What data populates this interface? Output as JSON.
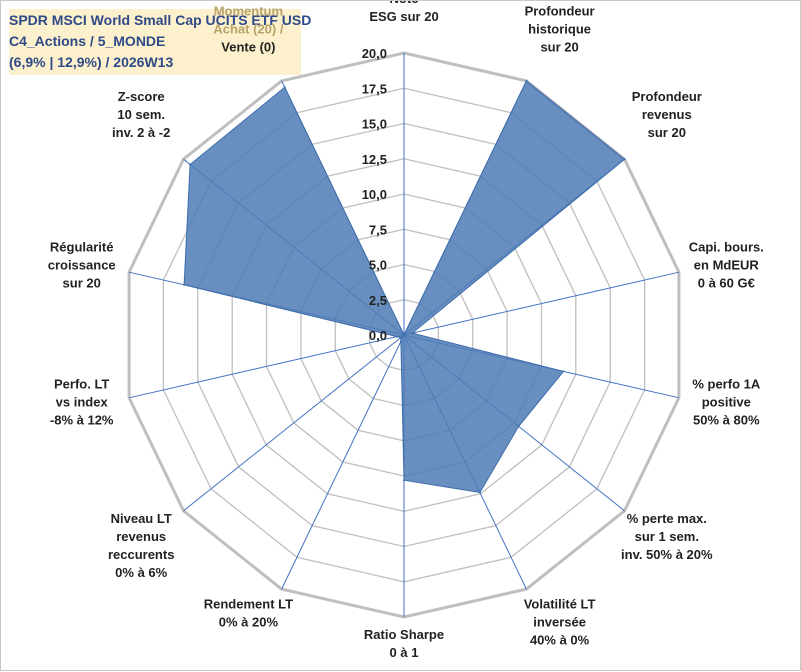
{
  "title": {
    "line1": "SPDR MSCI World Small Cap UCITS ETF USD",
    "line2": "C4_Actions / 5_MONDE",
    "line3": "(6,9% | 12,9%) / 2026W13"
  },
  "colors": {
    "fill": "#4f7bb5",
    "stroke": "#3d6dac",
    "grid": "#bfbfbf",
    "spoke": "#4472c4",
    "title_bg": "#fdf0cc",
    "title_text": "#2e4a88",
    "muted_label": "#b8a36a"
  },
  "chart_data": {
    "type": "radar",
    "rmax": 20,
    "tick_step": 2.5,
    "ticks": [
      "0,0",
      "2,5",
      "5,0",
      "7,5",
      "10,0",
      "12,5",
      "15,0",
      "17,5",
      "20,0"
    ],
    "axes": [
      {
        "label": [
          "Note",
          "ESG sur 20"
        ],
        "value": 0
      },
      {
        "label": [
          "Profondeur",
          "historique",
          "sur 20"
        ],
        "value": 20
      },
      {
        "label": [
          "Profondeur",
          "revenus",
          "sur 20"
        ],
        "value": 20
      },
      {
        "label": [
          "Capi. bours.",
          "en MdEUR",
          "0 à 60 G€"
        ],
        "value": 0.6
      },
      {
        "label": [
          "% perfo 1A",
          "positive",
          "50% à 80%"
        ],
        "value": 11.6
      },
      {
        "label": [
          "% perte max.",
          "sur 1 sem.",
          "inv. 50% à 20%"
        ],
        "value": 10.4
      },
      {
        "label": [
          "Volatilité LT",
          "inversée",
          "40% à 0%"
        ],
        "value": 12.4
      },
      {
        "label": [
          "Ratio Sharpe",
          "0 à 1"
        ],
        "value": 10.3
      },
      {
        "label": [
          "Rendement LT",
          "0% à 20%"
        ],
        "value": 0.5
      },
      {
        "label": [
          "Niveau LT",
          "revenus",
          "reccurents",
          "0% à 6%"
        ],
        "value": 0.3
      },
      {
        "label": [
          "Perfo. LT",
          "vs index",
          "-8% à 12%"
        ],
        "value": 0.5
      },
      {
        "label": [
          "Régularité",
          "croissance",
          "sur 20"
        ],
        "value": 16.0
      },
      {
        "label": [
          "Z-score",
          "10 sem.",
          "inv. 2 à -2"
        ],
        "value": 19.4
      },
      {
        "label": [
          "Momentum",
          "Achat (20) /",
          "Vente (0)"
        ],
        "value": 19.5
      }
    ]
  }
}
